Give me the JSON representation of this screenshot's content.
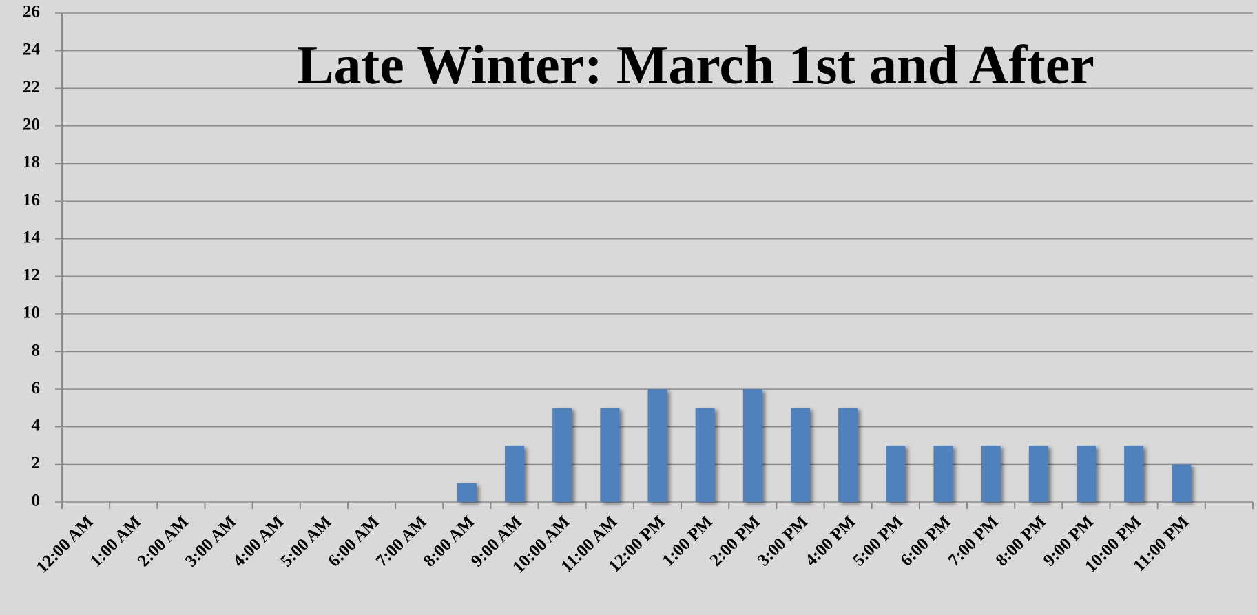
{
  "chart_data": {
    "type": "bar",
    "title": "Late Winter: March 1st and After",
    "categories": [
      "12:00 AM",
      "1:00 AM",
      "2:00 AM",
      "3:00 AM",
      "4:00 AM",
      "5:00 AM",
      "6:00 AM",
      "7:00 AM",
      "8:00 AM",
      "9:00 AM",
      "10:00 AM",
      "11:00 AM",
      "12:00 PM",
      "1:00 PM",
      "2:00 PM",
      "3:00 PM",
      "4:00 PM",
      "5:00 PM",
      "6:00 PM",
      "7:00 PM",
      "8:00 PM",
      "9:00 PM",
      "10:00 PM",
      "11:00 PM",
      null
    ],
    "values": [
      0,
      0,
      0,
      0,
      0,
      0,
      0,
      0,
      1,
      3,
      5,
      5,
      6,
      5,
      6,
      5,
      5,
      3,
      3,
      3,
      3,
      3,
      3,
      2,
      null
    ],
    "color": "#4f81bd",
    "ylim": [
      0,
      26
    ],
    "yticks": [
      0,
      2,
      4,
      6,
      8,
      10,
      12,
      14,
      16,
      18,
      20,
      22,
      24,
      26
    ],
    "grid": true
  }
}
